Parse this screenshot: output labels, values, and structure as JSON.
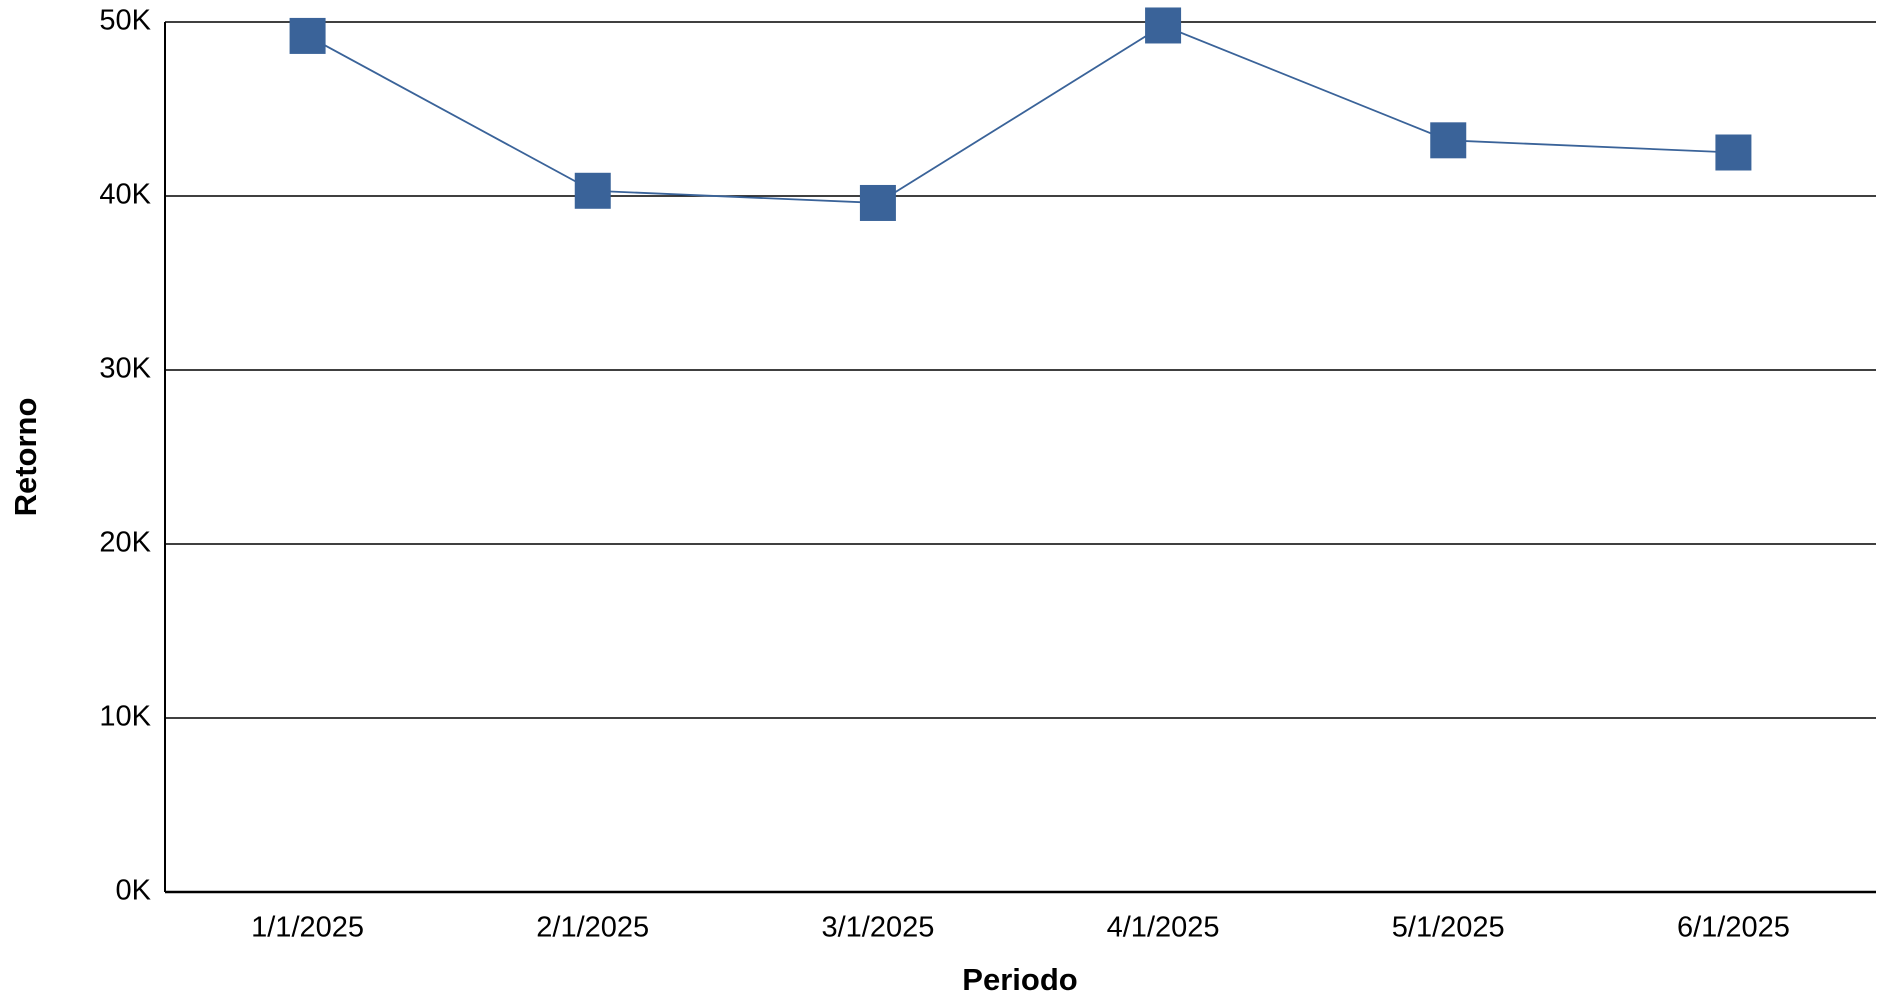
{
  "chart_data": {
    "type": "line",
    "x_label": "Periodo",
    "y_label": "Retorno",
    "categories": [
      "1/1/2025",
      "2/1/2025",
      "3/1/2025",
      "4/1/2025",
      "5/1/2025",
      "6/1/2025"
    ],
    "values": [
      49200,
      40300,
      39600,
      49800,
      43200,
      42500
    ],
    "color": "#3a6399",
    "ylim": [
      0,
      50000
    ],
    "yticks": [
      {
        "value": 0,
        "label": "0K"
      },
      {
        "value": 10000,
        "label": "10K"
      },
      {
        "value": 20000,
        "label": "20K"
      },
      {
        "value": 30000,
        "label": "30K"
      },
      {
        "value": 40000,
        "label": "40K"
      },
      {
        "value": 50000,
        "label": "50K"
      }
    ],
    "grid": true
  }
}
